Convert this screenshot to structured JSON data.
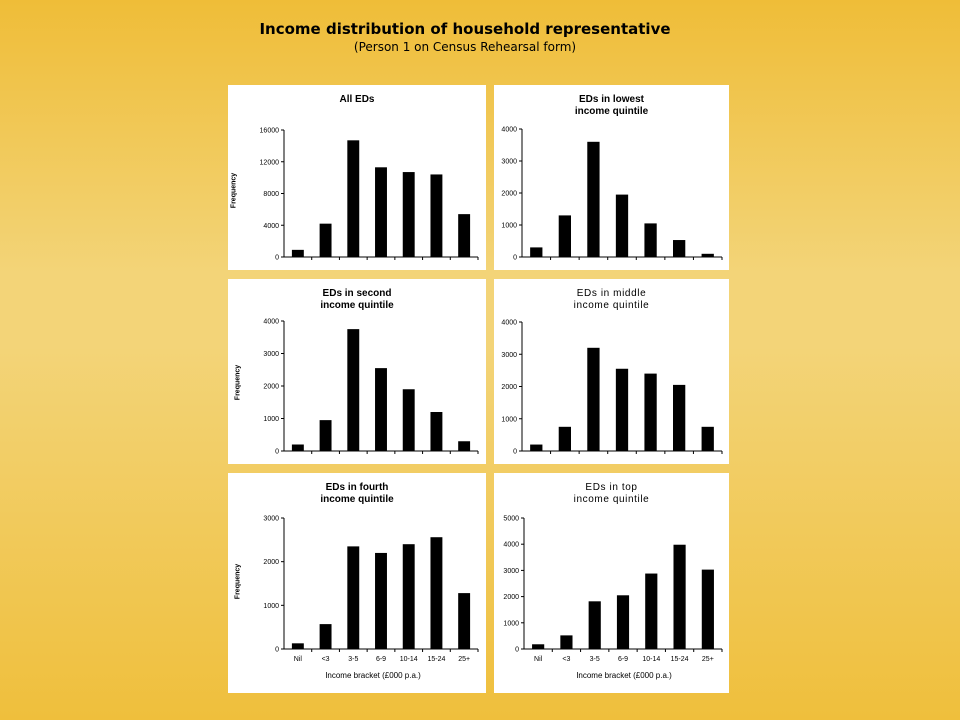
{
  "title": "Income distribution of household representative",
  "subtitle": "(Person 1 on Census Rehearsal form)",
  "chart_data": [
    {
      "type": "bar",
      "title": "All EDs",
      "ylabel": "Frequency",
      "xlabel": "",
      "categories": [
        "Nil",
        "<3",
        "3-5",
        "6-9",
        "10-14",
        "15-24",
        "25+"
      ],
      "values": [
        900,
        4200,
        14700,
        11300,
        10700,
        10400,
        5400
      ],
      "ylim": [
        0,
        16000
      ],
      "yticks": [
        0,
        4000,
        8000,
        12000,
        16000
      ],
      "show_xticks": false
    },
    {
      "type": "bar",
      "title": "EDs in lowest\nincome quintile",
      "ylabel": "",
      "xlabel": "",
      "categories": [
        "Nil",
        "<3",
        "3-5",
        "6-9",
        "10-14",
        "15-24",
        "25+"
      ],
      "values": [
        300,
        1300,
        3600,
        1950,
        1050,
        530,
        100
      ],
      "ylim": [
        0,
        4000
      ],
      "yticks": [
        0,
        1000,
        2000,
        3000,
        4000
      ],
      "show_xticks": false
    },
    {
      "type": "bar",
      "title": "EDs in second\nincome quintile",
      "ylabel": "Frequency",
      "xlabel": "",
      "categories": [
        "Nil",
        "<3",
        "3-5",
        "6-9",
        "10-14",
        "15-24",
        "25+"
      ],
      "values": [
        200,
        950,
        3750,
        2550,
        1900,
        1200,
        300
      ],
      "ylim": [
        0,
        4000
      ],
      "yticks": [
        0,
        1000,
        2000,
        3000,
        4000
      ],
      "show_xticks": false
    },
    {
      "type": "bar",
      "title": "EDs in middle\nincome quintile",
      "ylabel": "",
      "xlabel": "",
      "categories": [
        "Nil",
        "<3",
        "3-5",
        "6-9",
        "10-14",
        "15-24",
        "25+"
      ],
      "values": [
        200,
        750,
        3200,
        2550,
        2400,
        2050,
        750
      ],
      "ylim": [
        0,
        4000
      ],
      "yticks": [
        0,
        1000,
        2000,
        3000,
        4000
      ],
      "show_xticks": false
    },
    {
      "type": "bar",
      "title": "EDs in fourth\nincome quintile",
      "ylabel": "Frequency",
      "xlabel": "Income bracket (£000 p.a.)",
      "categories": [
        "Nil",
        "<3",
        "3-5",
        "6-9",
        "10-14",
        "15-24",
        "25+"
      ],
      "values": [
        130,
        570,
        2350,
        2200,
        2400,
        2560,
        1280
      ],
      "ylim": [
        0,
        3000
      ],
      "yticks": [
        0,
        1000,
        2000,
        3000
      ],
      "show_xticks": true
    },
    {
      "type": "bar",
      "title": "EDs in top\nincome quintile",
      "ylabel": "",
      "xlabel": "Income bracket (£000 p.a.)",
      "categories": [
        "Nil",
        "<3",
        "3-5",
        "6-9",
        "10-14",
        "15-24",
        "25+"
      ],
      "values": [
        180,
        520,
        1820,
        2050,
        2880,
        3980,
        3030
      ],
      "ylim": [
        0,
        5000
      ],
      "yticks": [
        0,
        1000,
        2000,
        3000,
        4000,
        5000
      ],
      "show_xticks": true
    }
  ]
}
